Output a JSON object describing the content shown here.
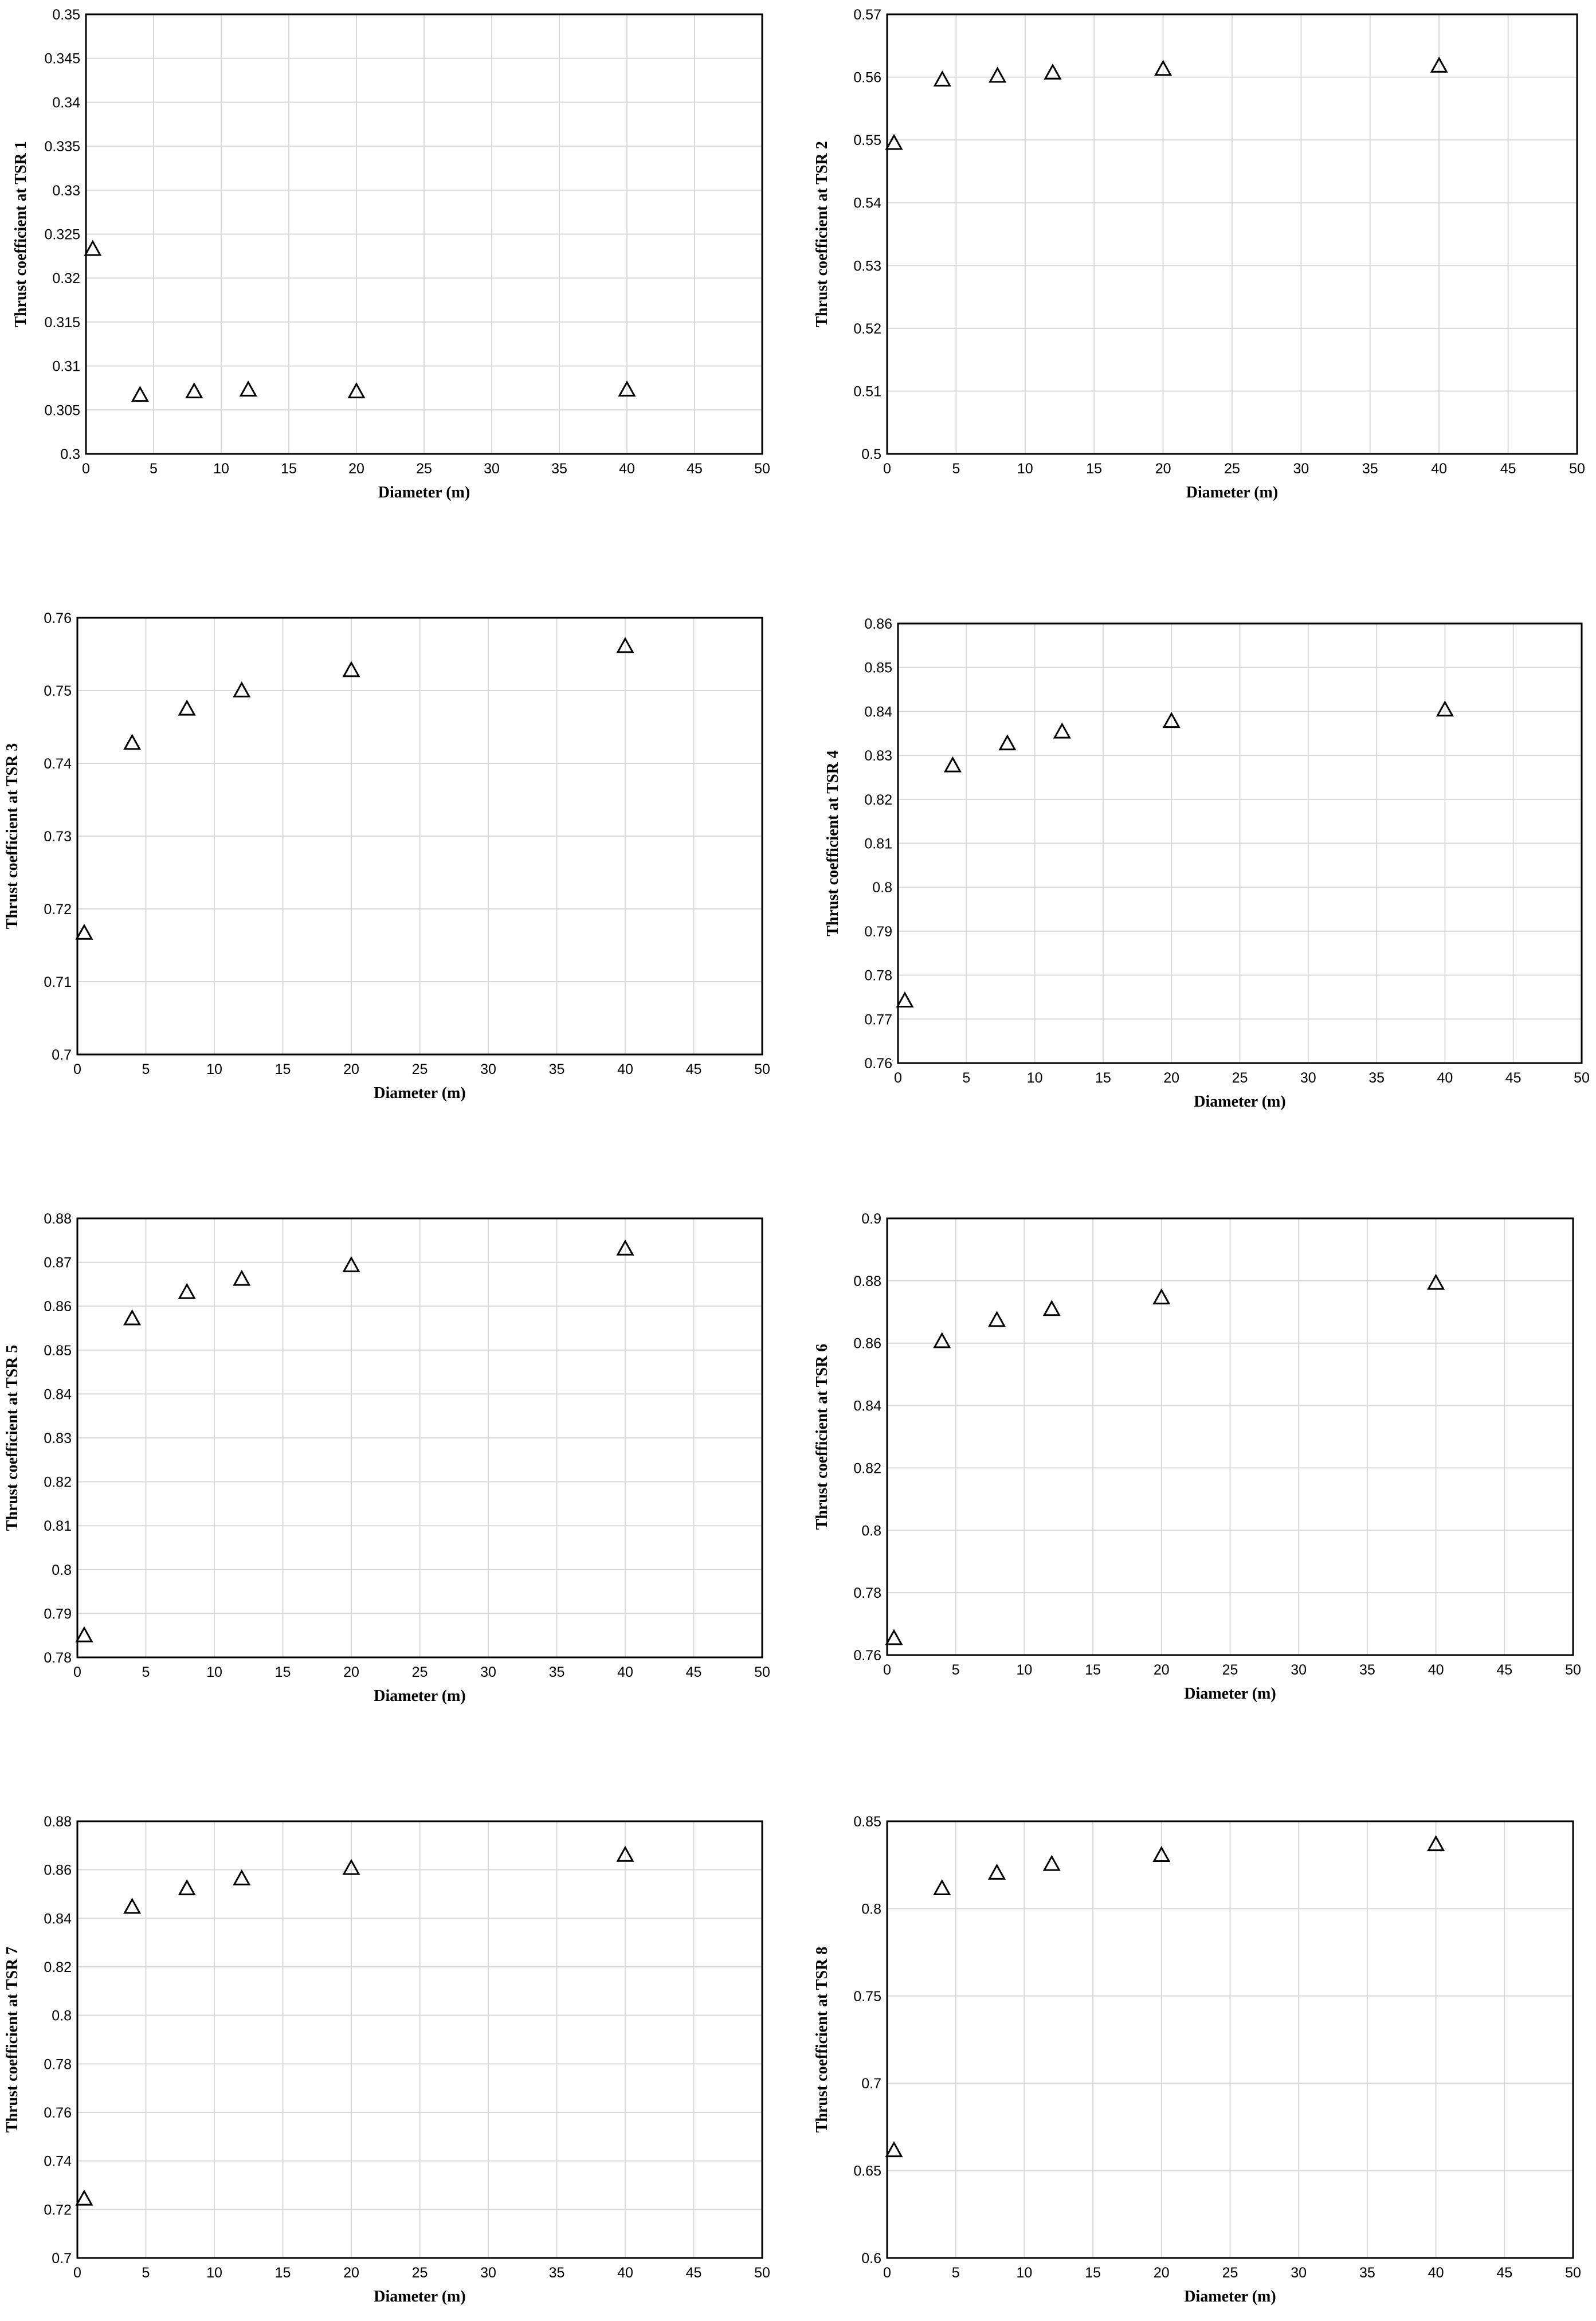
{
  "chart_data": [
    {
      "type": "scatter",
      "xlabel": "Diameter (m)",
      "ylabel": "Thrust coefficient at TSR 1",
      "xlim": [
        0,
        50
      ],
      "ylim": [
        0.3,
        0.35
      ],
      "xticks": [
        "0",
        "5",
        "10",
        "15",
        "20",
        "25",
        "30",
        "35",
        "40",
        "45",
        "50"
      ],
      "yticks": [
        "0.3",
        "0.305",
        "0.31",
        "0.315",
        "0.32",
        "0.325",
        "0.33",
        "0.335",
        "0.34",
        "0.345",
        "0.35"
      ],
      "marker": "open-triangle",
      "grid": true,
      "x": [
        0.5,
        4,
        8,
        12,
        20,
        40
      ],
      "y": [
        0.3233,
        0.3067,
        0.3071,
        0.3073,
        0.3071,
        0.3073
      ]
    },
    {
      "type": "scatter",
      "xlabel": "Diameter (m)",
      "ylabel": "Thrust coefficient at TSR 2",
      "xlim": [
        0,
        50
      ],
      "ylim": [
        0.5,
        0.57
      ],
      "xticks": [
        "0",
        "5",
        "10",
        "15",
        "20",
        "25",
        "30",
        "35",
        "40",
        "45",
        "50"
      ],
      "yticks": [
        "0.5",
        "0.51",
        "0.52",
        "0.53",
        "0.54",
        "0.55",
        "0.56",
        "0.57"
      ],
      "marker": "open-triangle",
      "grid": true,
      "x": [
        0.5,
        4,
        8,
        12,
        20,
        40
      ],
      "y": [
        0.5495,
        0.5596,
        0.5602,
        0.5607,
        0.5613,
        0.5618
      ]
    },
    {
      "type": "scatter",
      "xlabel": "Diameter (m)",
      "ylabel": "Thrust coefficient at TSR 3",
      "xlim": [
        0,
        50
      ],
      "ylim": [
        0.7,
        0.76
      ],
      "xticks": [
        "0",
        "5",
        "10",
        "15",
        "20",
        "25",
        "30",
        "35",
        "40",
        "45",
        "50"
      ],
      "yticks": [
        "0.7",
        "0.71",
        "0.72",
        "0.73",
        "0.74",
        "0.75",
        "0.76"
      ],
      "marker": "open-triangle",
      "grid": true,
      "x": [
        0.5,
        4,
        8,
        12,
        20,
        40
      ],
      "y": [
        0.7167,
        0.7428,
        0.7475,
        0.75,
        0.7528,
        0.7561
      ]
    },
    {
      "type": "scatter",
      "xlabel": "Diameter (m)",
      "ylabel": "Thrust coefficient at TSR 4",
      "xlim": [
        0,
        50
      ],
      "ylim": [
        0.76,
        0.86
      ],
      "xticks": [
        "0",
        "5",
        "10",
        "15",
        "20",
        "25",
        "30",
        "35",
        "40",
        "45",
        "50"
      ],
      "yticks": [
        "0.76",
        "0.77",
        "0.78",
        "0.79",
        "0.8",
        "0.81",
        "0.82",
        "0.83",
        "0.84",
        "0.85",
        "0.86"
      ],
      "marker": "open-triangle",
      "grid": true,
      "x": [
        0.5,
        4,
        8,
        12,
        20,
        40
      ],
      "y": [
        0.7742,
        0.8277,
        0.8327,
        0.8354,
        0.8378,
        0.8404
      ]
    },
    {
      "type": "scatter",
      "xlabel": "Diameter (m)",
      "ylabel": "Thrust coefficient at TSR 5",
      "xlim": [
        0,
        50
      ],
      "ylim": [
        0.78,
        0.88
      ],
      "xticks": [
        "0",
        "5",
        "10",
        "15",
        "20",
        "25",
        "30",
        "35",
        "40",
        "45",
        "50"
      ],
      "yticks": [
        "0.78",
        "0.79",
        "0.8",
        "0.81",
        "0.82",
        "0.83",
        "0.84",
        "0.85",
        "0.86",
        "0.87",
        "0.88"
      ],
      "marker": "open-triangle",
      "grid": true,
      "x": [
        0.5,
        4,
        8,
        12,
        20,
        40
      ],
      "y": [
        0.785,
        0.8572,
        0.8632,
        0.8662,
        0.8693,
        0.8731
      ]
    },
    {
      "type": "scatter",
      "xlabel": "Diameter (m)",
      "ylabel": "Thrust coefficient at TSR 6",
      "xlim": [
        0,
        50
      ],
      "ylim": [
        0.76,
        0.9
      ],
      "xticks": [
        "0",
        "5",
        "10",
        "15",
        "20",
        "25",
        "30",
        "35",
        "40",
        "45",
        "50"
      ],
      "yticks": [
        "0.76",
        "0.78",
        "0.8",
        "0.82",
        "0.84",
        "0.86",
        "0.88",
        "0.9"
      ],
      "marker": "open-triangle",
      "grid": true,
      "x": [
        0.5,
        4,
        8,
        12,
        20,
        40
      ],
      "y": [
        0.7654,
        0.8606,
        0.8674,
        0.8709,
        0.8746,
        0.8793
      ]
    },
    {
      "type": "scatter",
      "xlabel": "Diameter (m)",
      "ylabel": "Thrust coefficient at TSR 7",
      "xlim": [
        0,
        50
      ],
      "ylim": [
        0.7,
        0.88
      ],
      "xticks": [
        "0",
        "5",
        "10",
        "15",
        "20",
        "25",
        "30",
        "35",
        "40",
        "45",
        "50"
      ],
      "yticks": [
        "0.7",
        "0.72",
        "0.74",
        "0.76",
        "0.78",
        "0.8",
        "0.82",
        "0.84",
        "0.86",
        "0.88"
      ],
      "marker": "open-triangle",
      "grid": true,
      "x": [
        0.5,
        4,
        8,
        12,
        20,
        40
      ],
      "y": [
        0.7244,
        0.8447,
        0.8523,
        0.8564,
        0.8607,
        0.8661
      ]
    },
    {
      "type": "scatter",
      "xlabel": "Diameter (m)",
      "ylabel": "Thrust coefficient at TSR 8",
      "xlim": [
        0,
        50
      ],
      "ylim": [
        0.6,
        0.85
      ],
      "xticks": [
        "0",
        "5",
        "10",
        "15",
        "20",
        "25",
        "30",
        "35",
        "40",
        "45",
        "50"
      ],
      "yticks": [
        "0.6",
        "0.65",
        "0.7",
        "0.75",
        "0.8",
        "0.85"
      ],
      "marker": "open-triangle",
      "grid": true,
      "x": [
        0.5,
        4,
        8,
        12,
        20,
        40
      ],
      "y": [
        0.6616,
        0.8116,
        0.8205,
        0.8255,
        0.8306,
        0.8368
      ]
    }
  ]
}
